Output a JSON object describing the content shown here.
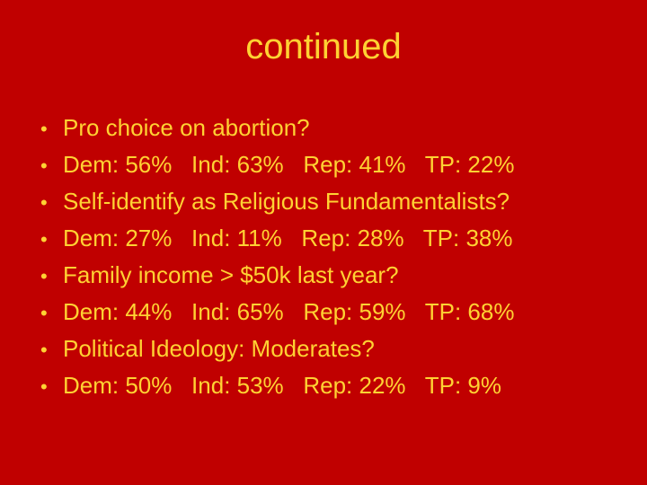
{
  "slide": {
    "title": "continued",
    "bullet_char": "•",
    "bullets": [
      "Pro choice on abortion?",
      "Dem: 56%   Ind: 63%   Rep: 41%   TP: 22%",
      "Self-identify as Religious Fundamentalists?",
      "Dem: 27%   Ind: 11%   Rep: 28%   TP: 38%",
      "Family income > $50k last year?",
      "Dem: 44%   Ind: 65%   Rep: 59%   TP: 68%",
      "Political Ideology: Moderates?",
      "Dem: 50%   Ind: 53%   Rep: 22%   TP: 9%"
    ],
    "colors": {
      "background": "#c00000",
      "text": "#ffd233"
    }
  }
}
